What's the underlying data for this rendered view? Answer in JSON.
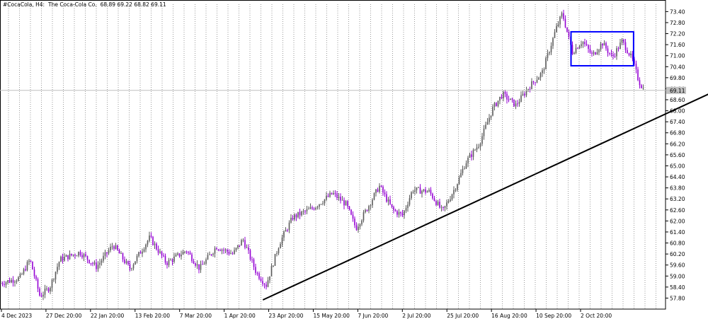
{
  "header": {
    "symbol": "#CocaCola, H4:",
    "name": "The Coca-Cola Co.",
    "ohlc": "68.89 69.22 68.82 69.11"
  },
  "chart_data": {
    "type": "candlestick",
    "title": "",
    "xlabel": "",
    "ylabel": "",
    "ylim": [
      57.2,
      73.8
    ],
    "y_ticks": [
      "73.40",
      "72.80",
      "72.20",
      "71.60",
      "71.00",
      "70.40",
      "69.80",
      "69.20",
      "68.60",
      "68.00",
      "67.40",
      "66.80",
      "66.20",
      "65.60",
      "65.00",
      "64.40",
      "63.80",
      "63.20",
      "62.60",
      "62.00",
      "61.40",
      "60.80",
      "60.20",
      "59.60",
      "59.00",
      "58.40",
      "57.80"
    ],
    "current_price_label": "69.11",
    "current_price": 69.11,
    "x_tick_labels": [
      "4 Dec 2023",
      "27 Dec 20:00",
      "22 Jan 20:00",
      "13 Feb 20:00",
      "7 Mar 20:00",
      "1 Apr 20:00",
      "23 Apr 20:00",
      "15 May 20:00",
      "7 Jun 20:00",
      "2 Jul 20:00",
      "25 Jul 20:00",
      "16 Aug 20:00",
      "10 Sep 20:00",
      "2 Oct 20:00"
    ],
    "price_path": [
      {
        "t": 0.0,
        "p": 58.6
      },
      {
        "t": 0.03,
        "p": 58.9
      },
      {
        "t": 0.045,
        "p": 59.9
      },
      {
        "t": 0.06,
        "p": 57.9
      },
      {
        "t": 0.075,
        "p": 58.4
      },
      {
        "t": 0.09,
        "p": 59.9
      },
      {
        "t": 0.12,
        "p": 60.3
      },
      {
        "t": 0.145,
        "p": 59.5
      },
      {
        "t": 0.17,
        "p": 60.7
      },
      {
        "t": 0.195,
        "p": 59.4
      },
      {
        "t": 0.225,
        "p": 61.1
      },
      {
        "t": 0.25,
        "p": 59.7
      },
      {
        "t": 0.28,
        "p": 60.4
      },
      {
        "t": 0.3,
        "p": 59.4
      },
      {
        "t": 0.325,
        "p": 60.6
      },
      {
        "t": 0.35,
        "p": 60.2
      },
      {
        "t": 0.365,
        "p": 61.0
      },
      {
        "t": 0.385,
        "p": 59.2
      },
      {
        "t": 0.4,
        "p": 58.5
      },
      {
        "t": 0.42,
        "p": 60.8
      },
      {
        "t": 0.44,
        "p": 62.2
      },
      {
        "t": 0.47,
        "p": 62.7
      },
      {
        "t": 0.5,
        "p": 63.5
      },
      {
        "t": 0.52,
        "p": 62.9
      },
      {
        "t": 0.535,
        "p": 61.6
      },
      {
        "t": 0.555,
        "p": 62.9
      },
      {
        "t": 0.57,
        "p": 63.9
      },
      {
        "t": 0.59,
        "p": 62.6
      },
      {
        "t": 0.605,
        "p": 62.3
      },
      {
        "t": 0.62,
        "p": 63.7
      },
      {
        "t": 0.645,
        "p": 63.6
      },
      {
        "t": 0.665,
        "p": 62.5
      },
      {
        "t": 0.685,
        "p": 63.9
      },
      {
        "t": 0.7,
        "p": 65.2
      },
      {
        "t": 0.72,
        "p": 66.2
      },
      {
        "t": 0.74,
        "p": 68.1
      },
      {
        "t": 0.755,
        "p": 68.9
      },
      {
        "t": 0.775,
        "p": 68.3
      },
      {
        "t": 0.795,
        "p": 69.3
      },
      {
        "t": 0.815,
        "p": 70.1
      },
      {
        "t": 0.835,
        "p": 72.4
      },
      {
        "t": 0.845,
        "p": 73.3
      },
      {
        "t": 0.86,
        "p": 71.2
      },
      {
        "t": 0.875,
        "p": 71.8
      },
      {
        "t": 0.89,
        "p": 71.0
      },
      {
        "t": 0.905,
        "p": 71.7
      },
      {
        "t": 0.92,
        "p": 70.9
      },
      {
        "t": 0.935,
        "p": 71.8
      },
      {
        "t": 0.95,
        "p": 70.8
      },
      {
        "t": 0.96,
        "p": 69.6
      },
      {
        "t": 0.968,
        "p": 69.11
      }
    ],
    "trendline": {
      "start": {
        "t": 0.395,
        "p": 57.7
      },
      "end": {
        "t": 1.1,
        "p": 69.5
      },
      "color": "#000000"
    },
    "range_box": {
      "t_start": 0.858,
      "t_end": 0.952,
      "p_high": 72.3,
      "p_low": 70.45,
      "color": "#0000ff"
    },
    "colors": {
      "bull": "#5a5a5a",
      "bear": "#9400d3",
      "grid": "#9a9a9a",
      "price_line": "#c0c0c0",
      "price_label_bg": "#c0c0c0"
    },
    "grid": "vertical-dotted",
    "axis_position": "right"
  }
}
